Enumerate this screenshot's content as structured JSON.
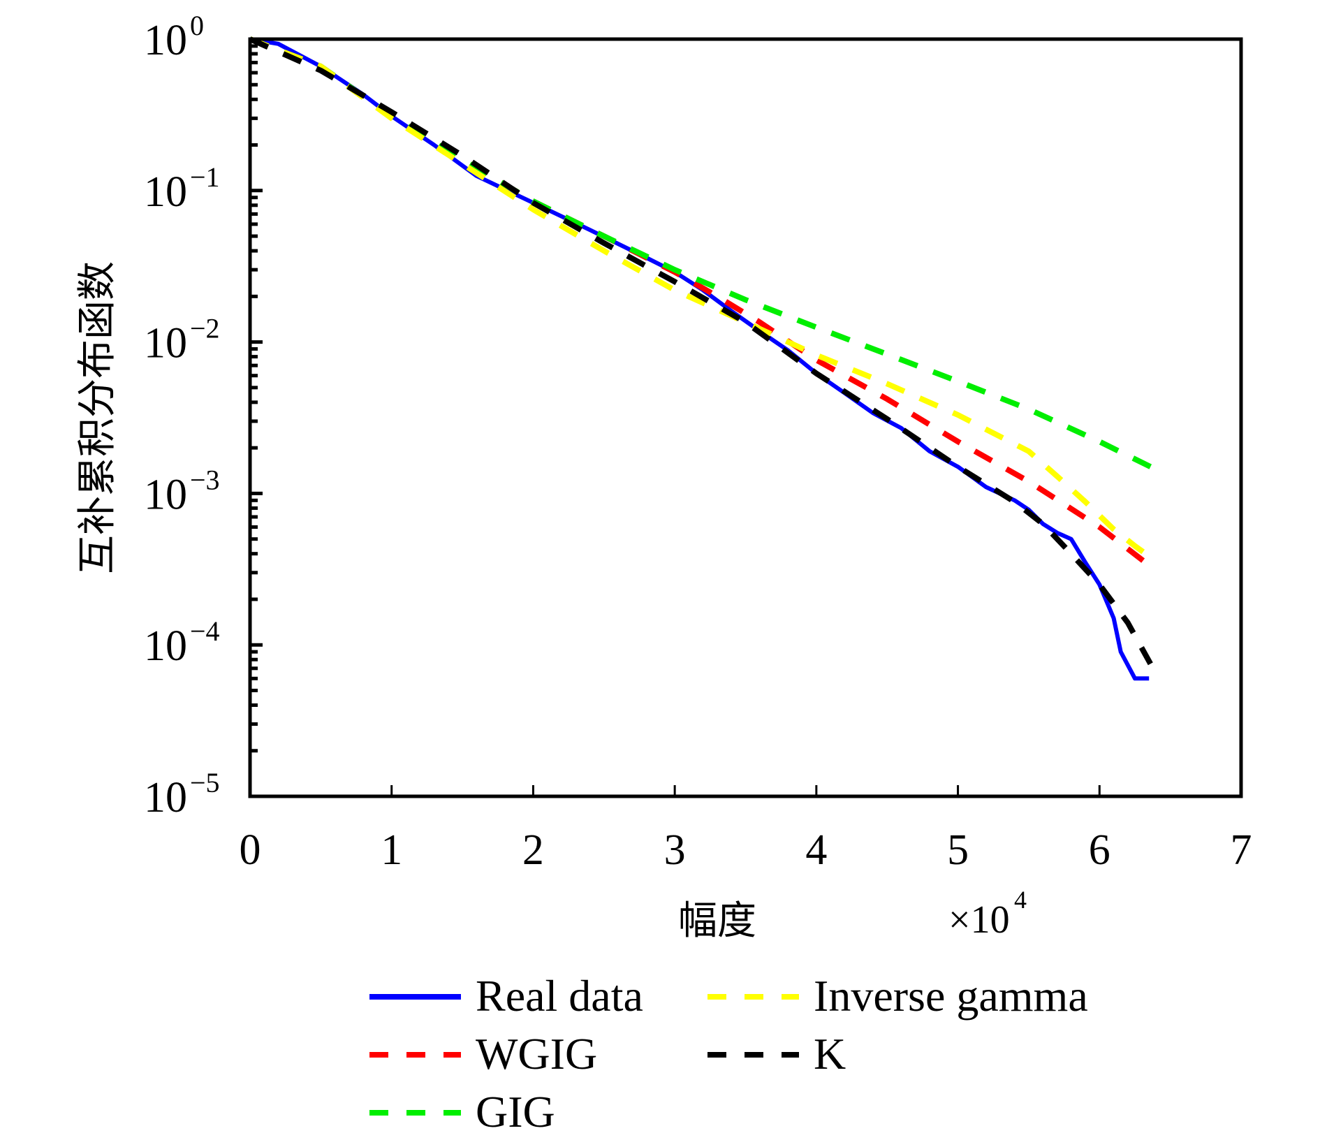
{
  "chart_data": {
    "type": "line",
    "title": "",
    "xlabel": "幅度",
    "ylabel": "互补累积分布函数",
    "x_multiplier": {
      "base": "×10",
      "exponent": "4"
    },
    "xlim": [
      0,
      7
    ],
    "ylim": [
      1e-05,
      1
    ],
    "yscale": "log",
    "x_ticks": [
      "0",
      "1",
      "2",
      "3",
      "4",
      "5",
      "6",
      "7"
    ],
    "y_ticks": [
      {
        "base": "10",
        "exp": "0"
      },
      {
        "base": "10",
        "exp": "−1"
      },
      {
        "base": "10",
        "exp": "−2"
      },
      {
        "base": "10",
        "exp": "−3"
      },
      {
        "base": "10",
        "exp": "−4"
      },
      {
        "base": "10",
        "exp": "−5"
      }
    ],
    "grid": false,
    "legend_position": "bottom",
    "series": [
      {
        "name": "Real data",
        "color": "#0000ff",
        "style": "solid",
        "x": [
          0,
          0.2,
          0.5,
          0.8,
          1.0,
          1.3,
          1.6,
          2.0,
          2.4,
          2.8,
          3.0,
          3.2,
          3.4,
          3.6,
          3.8,
          4.0,
          4.2,
          4.4,
          4.6,
          4.8,
          5.0,
          5.2,
          5.4,
          5.5,
          5.6,
          5.7,
          5.8,
          5.9,
          6.0,
          6.1,
          6.15,
          6.25,
          6.35
        ],
        "y": [
          1.0,
          0.93,
          0.66,
          0.43,
          0.31,
          0.2,
          0.125,
          0.083,
          0.055,
          0.036,
          0.029,
          0.022,
          0.016,
          0.0118,
          0.0088,
          0.0062,
          0.0046,
          0.0034,
          0.0027,
          0.0019,
          0.0015,
          0.0011,
          0.0009,
          0.00078,
          0.00063,
          0.00055,
          0.0005,
          0.00035,
          0.00025,
          0.00015,
          9e-05,
          6e-05,
          6e-05
        ]
      },
      {
        "name": "WGIG",
        "color": "#ff0000",
        "style": "dashed",
        "x": [
          0,
          0.5,
          1.0,
          1.5,
          2.0,
          2.5,
          3.0,
          3.3,
          3.6,
          4.0,
          4.5,
          5.0,
          5.5,
          6.0,
          6.36
        ],
        "y": [
          1.0,
          0.66,
          0.31,
          0.16,
          0.085,
          0.05,
          0.029,
          0.02,
          0.0135,
          0.0076,
          0.0042,
          0.0022,
          0.0012,
          0.0006,
          0.00033
        ]
      },
      {
        "name": "GIG",
        "color": "#00ee00",
        "style": "dashed",
        "x": [
          0,
          0.5,
          1.0,
          1.5,
          2.0,
          2.5,
          3.0,
          3.5,
          4.0,
          4.5,
          5.0,
          5.5,
          6.0,
          6.36
        ],
        "y": [
          1.0,
          0.66,
          0.31,
          0.16,
          0.085,
          0.05,
          0.03,
          0.019,
          0.0125,
          0.0083,
          0.0055,
          0.0036,
          0.0022,
          0.0015
        ]
      },
      {
        "name": "Inverse gamma",
        "color": "#ffff00",
        "style": "dashed",
        "x": [
          0,
          0.5,
          1.0,
          1.5,
          2.0,
          2.5,
          3.0,
          3.5,
          4.0,
          4.5,
          5.0,
          5.5,
          5.7,
          5.9,
          6.1,
          6.25,
          6.36
        ],
        "y": [
          1.0,
          0.66,
          0.3,
          0.15,
          0.075,
          0.04,
          0.022,
          0.0135,
          0.0082,
          0.0053,
          0.0033,
          0.0019,
          0.0013,
          0.00088,
          0.00058,
          0.00045,
          0.00038
        ]
      },
      {
        "name": "K",
        "color": "#000000",
        "style": "dashed",
        "x": [
          0,
          0.5,
          1.0,
          1.5,
          2.0,
          2.5,
          3.0,
          3.5,
          4.0,
          4.5,
          5.0,
          5.4,
          5.6,
          5.8,
          6.0,
          6.2,
          6.36
        ],
        "y": [
          1.0,
          0.62,
          0.33,
          0.17,
          0.083,
          0.045,
          0.025,
          0.0135,
          0.0062,
          0.0031,
          0.0015,
          0.00088,
          0.00063,
          0.0004,
          0.00025,
          0.00014,
          7.5e-05
        ]
      }
    ]
  }
}
